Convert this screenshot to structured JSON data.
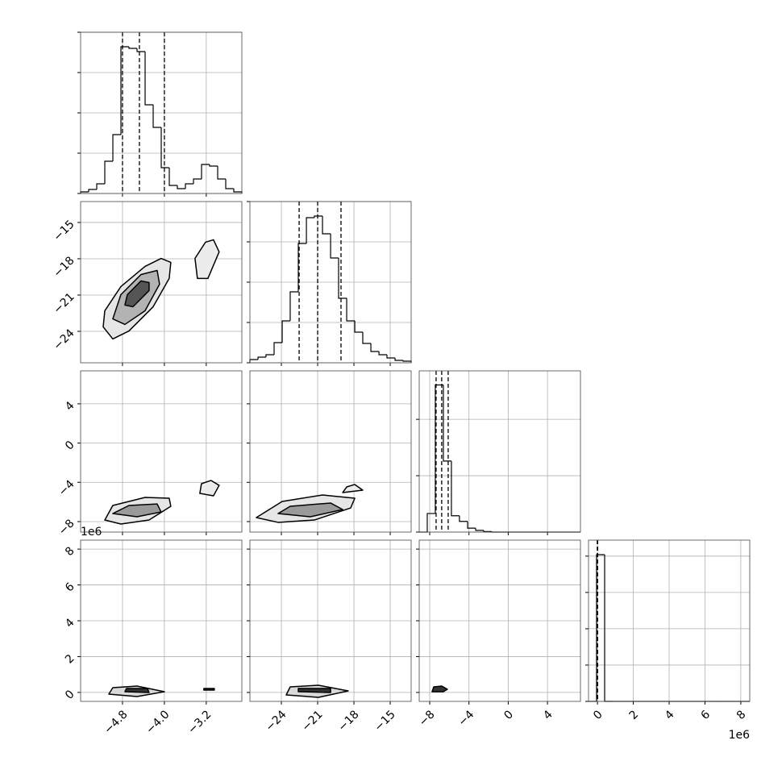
{
  "chart_data": {
    "type": "corner",
    "params": [
      {
        "xlim": [
          -5.6,
          -2.52
        ],
        "xticks": [
          {
            "value": -4.8,
            "label": "−4.8"
          },
          {
            "value": -4.0,
            "label": "−4.0"
          },
          {
            "value": -3.2,
            "label": "−3.2"
          }
        ]
      },
      {
        "xlim": [
          -26.6,
          -13.27
        ],
        "xticks": [
          {
            "value": -24,
            "label": "−24"
          },
          {
            "value": -21,
            "label": "−21"
          },
          {
            "value": -18,
            "label": "−18"
          },
          {
            "value": -15,
            "label": "−15"
          }
        ]
      },
      {
        "xlim": [
          -9.07,
          7.36
        ],
        "xticks": [
          {
            "value": -8,
            "label": "−8"
          },
          {
            "value": -4,
            "label": "−4"
          },
          0,
          4
        ]
      },
      {
        "xlim": [
          -0.5,
          8.5
        ],
        "xticks": [
          0,
          2,
          4,
          6,
          8
        ]
      }
    ],
    "y_offset_label": "1e6",
    "x_offset_label": "1e6",
    "histograms": [
      {
        "param": 0,
        "ylim": [
          0,
          4
        ],
        "yticks": [
          0,
          1,
          2,
          3,
          4
        ],
        "bins": [
          -5.6,
          -5.446,
          -5.292,
          -5.138,
          -4.984,
          -4.83,
          -4.676,
          -4.522,
          -4.368,
          -4.214,
          -4.06,
          -3.906,
          -3.752,
          -3.598,
          -3.444,
          -3.29,
          -3.136,
          -2.982,
          -2.828,
          -2.674,
          -2.52
        ],
        "values": [
          0.04,
          0.1,
          0.24,
          0.8,
          1.46,
          3.64,
          3.6,
          3.52,
          2.2,
          1.64,
          0.64,
          0.2,
          0.12,
          0.24,
          0.36,
          0.72,
          0.68,
          0.36,
          0.12,
          0.04
        ],
        "quantiles": [
          -4.8,
          -4.477,
          -4.0
        ]
      },
      {
        "param": 1,
        "ylim": [
          0,
          4
        ],
        "yticks": [
          0,
          1,
          2,
          3,
          4
        ],
        "bins": [
          -26.6,
          -25.93,
          -25.27,
          -24.6,
          -23.93,
          -23.27,
          -22.6,
          -21.93,
          -21.27,
          -20.6,
          -19.93,
          -19.27,
          -18.6,
          -17.93,
          -17.27,
          -16.6,
          -15.93,
          -15.27,
          -14.6,
          -13.93,
          -13.27
        ],
        "values": [
          0.08,
          0.14,
          0.2,
          0.5,
          1.04,
          1.76,
          2.96,
          3.6,
          3.64,
          3.2,
          2.6,
          1.6,
          1.04,
          0.76,
          0.48,
          0.28,
          0.2,
          0.12,
          0.06,
          0.04
        ],
        "quantiles": [
          -22.53,
          -21.0,
          -19.07
        ]
      },
      {
        "param": 2,
        "ylim": [
          0,
          2.86
        ],
        "yticks": [
          0,
          1,
          2
        ],
        "bins": [
          -9.07,
          -8.25,
          -7.43,
          -6.61,
          -5.79,
          -4.97,
          -4.14,
          -3.32,
          -2.5,
          -1.68,
          -0.86,
          -0.03,
          0.79,
          1.61,
          2.43,
          3.25,
          4.07,
          4.89,
          5.72,
          6.54,
          7.36
        ],
        "values": [
          0,
          0.33,
          2.61,
          1.26,
          0.29,
          0.19,
          0.07,
          0.03,
          0.01,
          0,
          0,
          0,
          0,
          0,
          0,
          0,
          0,
          0,
          0,
          0
        ],
        "quantiles": [
          -7.35,
          -6.78,
          -6.12
        ]
      },
      {
        "param": 3,
        "ylim": [
          0,
          4.44
        ],
        "yticks": [
          0,
          1,
          2,
          3,
          4
        ],
        "bins": [
          -0.5,
          -0.05,
          0.4,
          0.85,
          1.3,
          1.75,
          2.2,
          2.65,
          3.1,
          3.55,
          4.0,
          4.45,
          4.9,
          5.35,
          5.8,
          6.25,
          6.7,
          7.15,
          7.6,
          8.05,
          8.5
        ],
        "values": [
          0,
          4.04,
          0,
          0,
          0,
          0,
          0,
          0,
          0,
          0,
          0,
          0,
          0,
          0,
          0,
          0,
          0,
          0,
          0,
          0
        ],
        "quantiles": [
          -0.01,
          0,
          0.01
        ]
      }
    ],
    "panels": [
      {
        "x_param": 0,
        "y_param": 1,
        "contours": [
          {
            "fill": "#e6e6e6",
            "x": [
              -5.169,
              -4.985,
              -4.677,
              -4.215,
              -3.908,
              -3.877,
              -4.062,
              -4.369,
              -4.831,
              -5.138
            ],
            "y": [
              -23.63,
              -24.63,
              -23.97,
              -21.97,
              -19.63,
              -18.3,
              -17.97,
              -18.63,
              -20.3,
              -22.3
            ]
          },
          {
            "fill": "#b3b3b3",
            "x": [
              -4.985,
              -4.754,
              -4.369,
              -4.092,
              -4.138,
              -4.446,
              -4.831
            ],
            "y": [
              -22.97,
              -23.43,
              -22.3,
              -20.1,
              -18.97,
              -19.3,
              -20.97
            ]
          },
          {
            "fill": "#555555",
            "x": [
              -4.754,
              -4.6,
              -4.292,
              -4.292,
              -4.446,
              -4.708
            ],
            "y": [
              -21.83,
              -21.97,
              -20.63,
              -19.97,
              -19.83,
              -20.97
            ]
          },
          {
            "fill": "#ececec",
            "x": [
              -3.369,
              -3.169,
              -2.954,
              -3.062,
              -3.215,
              -3.415
            ],
            "y": [
              -19.63,
              -19.63,
              -17.43,
              -16.43,
              -16.63,
              -17.97
            ]
          }
        ]
      },
      {
        "x_param": 0,
        "y_param": 2,
        "contours": [
          {
            "fill": "#e6e6e6",
            "x": [
              -5.138,
              -4.831,
              -4.292,
              -3.877,
              -3.908,
              -4.369,
              -4.985
            ],
            "y": [
              -7.84,
              -8.25,
              -7.84,
              -6.44,
              -5.62,
              -5.54,
              -6.36
            ]
          },
          {
            "fill": "#9a9a9a",
            "x": [
              -4.985,
              -4.523,
              -4.062,
              -4.138,
              -4.677
            ],
            "y": [
              -7.18,
              -7.51,
              -7.02,
              -6.2,
              -6.36
            ]
          },
          {
            "fill": "#ececec",
            "x": [
              -3.323,
              -3.062,
              -2.954,
              -3.108,
              -3.292
            ],
            "y": [
              -5.13,
              -5.37,
              -4.31,
              -3.81,
              -4.14
            ]
          }
        ]
      },
      {
        "x_param": 1,
        "y_param": 2,
        "contours": [
          {
            "fill": "#e6e6e6",
            "x": [
              -26.07,
              -24.27,
              -21.27,
              -18.27,
              -17.93,
              -20.6,
              -23.93
            ],
            "y": [
              -7.59,
              -8.08,
              -7.84,
              -6.61,
              -5.62,
              -5.29,
              -5.95
            ]
          },
          {
            "fill": "#9a9a9a",
            "x": [
              -24.27,
              -21.6,
              -18.93,
              -19.93,
              -23.27
            ],
            "y": [
              -7.18,
              -7.51,
              -6.77,
              -6.11,
              -6.44
            ]
          },
          {
            "fill": "#ececec",
            "x": [
              -18.93,
              -17.27,
              -17.93,
              -18.6
            ],
            "y": [
              -5.04,
              -4.8,
              -4.22,
              -4.47
            ]
          }
        ]
      },
      {
        "x_param": 0,
        "y_param": 3,
        "contours": [
          {
            "fill": "#d9d9d9",
            "x": [
              -5.062,
              -4.523,
              -4.0,
              -4.523,
              -4.985
            ],
            "y": [
              -0.095,
              -0.23,
              0.04,
              0.355,
              0.265
            ]
          },
          {
            "fill": "#333333",
            "x": [
              -4.754,
              -4.292,
              -4.323,
              -4.723
            ],
            "y": [
              0.04,
              -0.005,
              0.22,
              0.22
            ]
          },
          {
            "fill": "#333333",
            "x": [
              -3.246,
              -3.046,
              -3.046,
              -3.246
            ],
            "y": [
              0.13,
              0.13,
              0.22,
              0.22
            ]
          }
        ]
      },
      {
        "x_param": 1,
        "y_param": 3,
        "contours": [
          {
            "fill": "#d9d9d9",
            "x": [
              -23.6,
              -20.93,
              -18.47,
              -20.93,
              -23.27
            ],
            "y": [
              -0.14,
              -0.275,
              0.085,
              0.4,
              0.31
            ]
          },
          {
            "fill": "#333333",
            "x": [
              -22.6,
              -19.93,
              -19.93,
              -22.6
            ],
            "y": [
              0.04,
              -0.005,
              0.22,
              0.22
            ]
          }
        ]
      },
      {
        "x_param": 2,
        "y_param": 3,
        "contours": [
          {
            "fill": "#333333",
            "x": [
              -7.76,
              -6.61,
              -6.2,
              -6.77,
              -7.59
            ],
            "y": [
              0.04,
              0.04,
              0.175,
              0.355,
              0.31
            ]
          }
        ]
      }
    ]
  }
}
